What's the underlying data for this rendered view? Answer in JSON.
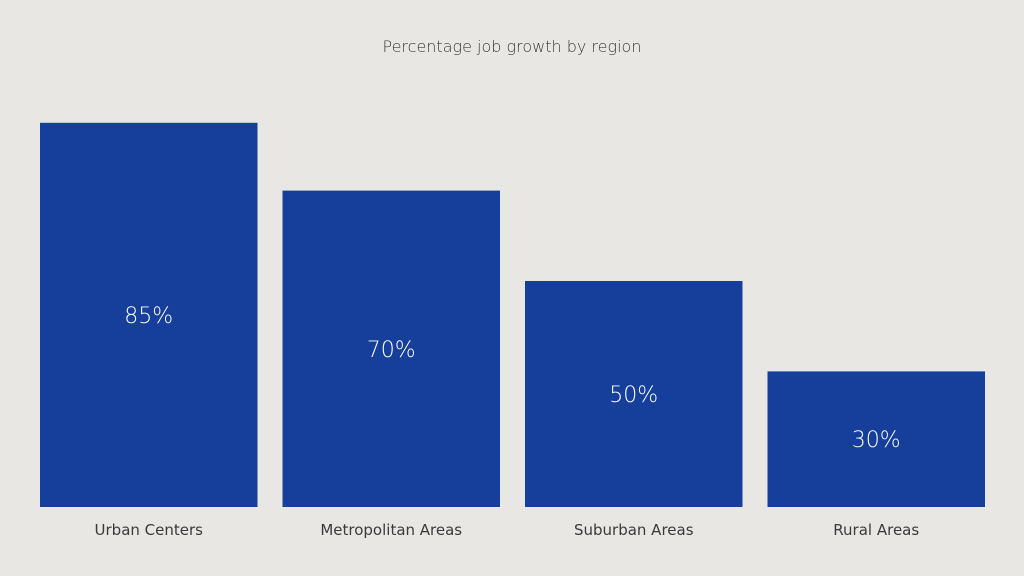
{
  "chart_data": {
    "type": "bar",
    "title": "Percentage job growth by region",
    "categories": [
      "Urban Centers",
      "Metropolitan Areas",
      "Suburban Areas",
      "Rural Areas"
    ],
    "values": [
      85,
      70,
      50,
      30
    ],
    "value_labels": [
      "85%",
      "70%",
      "50%",
      "30%"
    ],
    "ylim": [
      0,
      100
    ],
    "grid": false,
    "bar_color": "#153f9a",
    "background_color": "#e9e7e4",
    "label_color": "#ffffff",
    "text_color": "#3a3a3a"
  }
}
